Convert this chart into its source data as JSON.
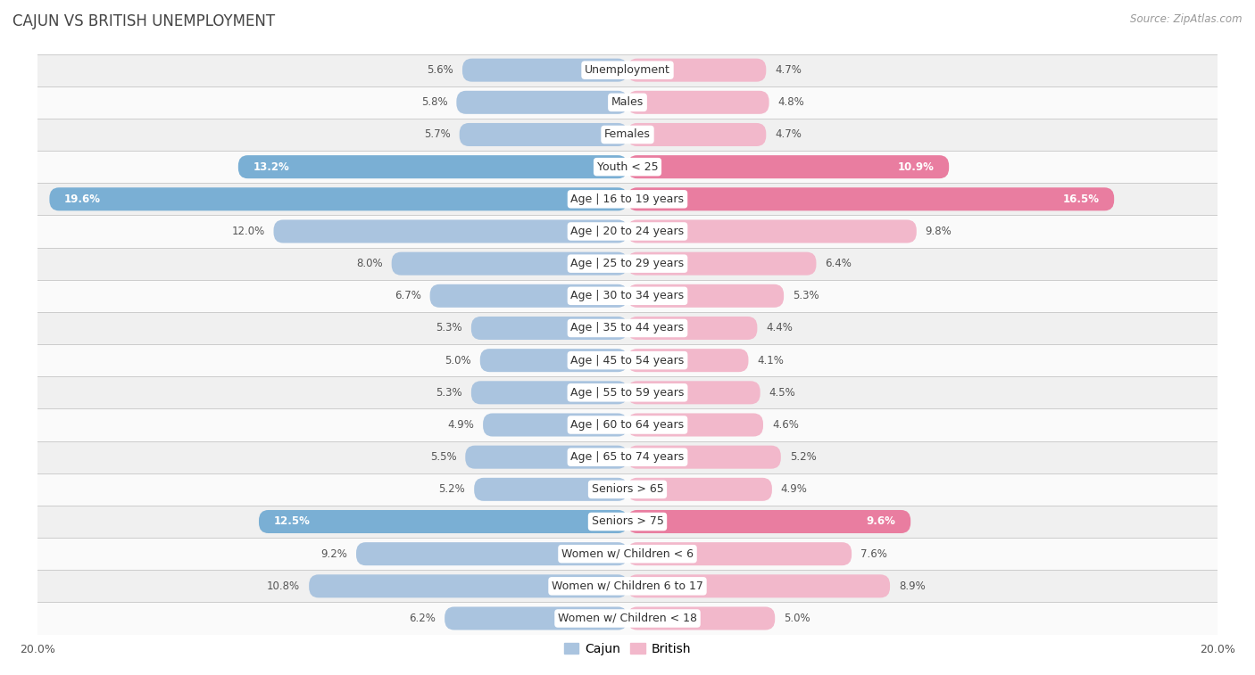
{
  "title": "CAJUN VS BRITISH UNEMPLOYMENT",
  "source": "Source: ZipAtlas.com",
  "categories": [
    "Unemployment",
    "Males",
    "Females",
    "Youth < 25",
    "Age | 16 to 19 years",
    "Age | 20 to 24 years",
    "Age | 25 to 29 years",
    "Age | 30 to 34 years",
    "Age | 35 to 44 years",
    "Age | 45 to 54 years",
    "Age | 55 to 59 years",
    "Age | 60 to 64 years",
    "Age | 65 to 74 years",
    "Seniors > 65",
    "Seniors > 75",
    "Women w/ Children < 6",
    "Women w/ Children 6 to 17",
    "Women w/ Children < 18"
  ],
  "cajun": [
    5.6,
    5.8,
    5.7,
    13.2,
    19.6,
    12.0,
    8.0,
    6.7,
    5.3,
    5.0,
    5.3,
    4.9,
    5.5,
    5.2,
    12.5,
    9.2,
    10.8,
    6.2
  ],
  "british": [
    4.7,
    4.8,
    4.7,
    10.9,
    16.5,
    9.8,
    6.4,
    5.3,
    4.4,
    4.1,
    4.5,
    4.6,
    5.2,
    4.9,
    9.6,
    7.6,
    8.9,
    5.0
  ],
  "cajun_color_normal": "#aac4df",
  "cajun_color_highlight": "#7aafd4",
  "british_color_normal": "#f2b8cb",
  "british_color_highlight": "#e97da0",
  "highlight_rows": [
    3,
    4,
    14
  ],
  "axis_limit": 20.0,
  "bar_height": 0.72,
  "bg_color_odd": "#f0f0f0",
  "bg_color_even": "#fafafa",
  "label_fontsize": 9.0,
  "value_fontsize": 8.5,
  "title_fontsize": 12,
  "source_fontsize": 8.5
}
